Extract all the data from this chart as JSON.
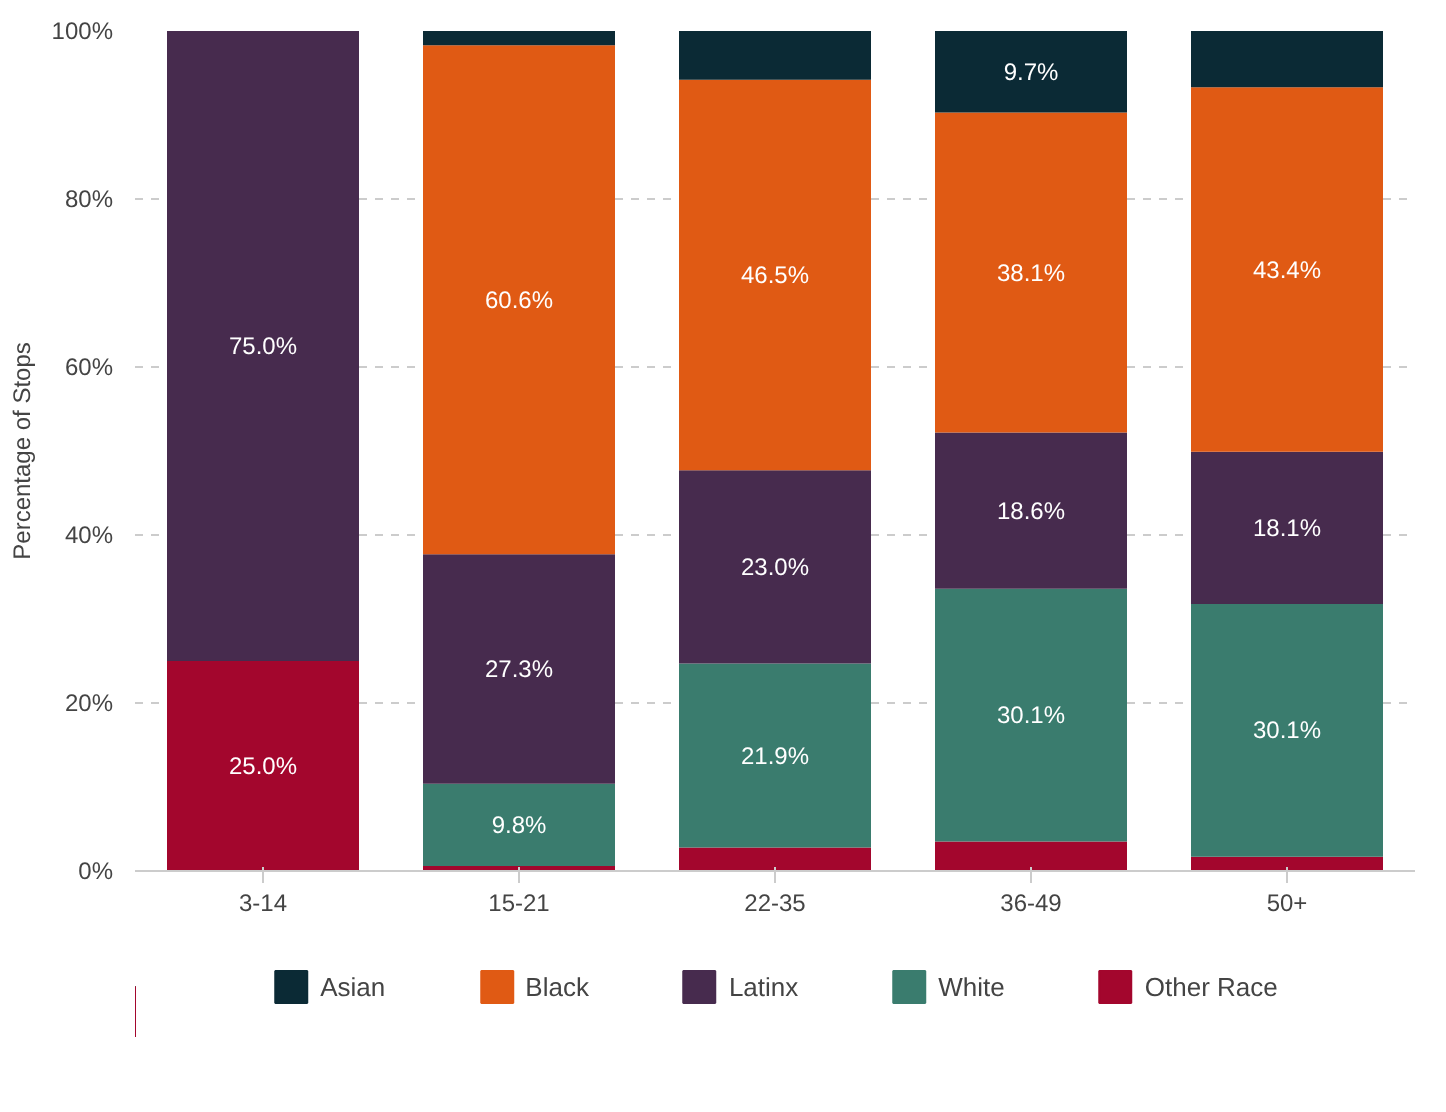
{
  "chart_data": {
    "type": "bar",
    "stacked": true,
    "ylabel": "Percentage of Stops",
    "categories": [
      "3-14",
      "15-21",
      "22-35",
      "36-49",
      "50+"
    ],
    "ylim": [
      0,
      100
    ],
    "yticks": [
      {
        "value": 0,
        "label": "0%"
      },
      {
        "value": 20,
        "label": "20%"
      },
      {
        "value": 40,
        "label": "40%"
      },
      {
        "value": 60,
        "label": "60%"
      },
      {
        "value": 80,
        "label": "80%"
      },
      {
        "value": 100,
        "label": "100%"
      }
    ],
    "grid": "y",
    "legend": "bottom",
    "series": [
      {
        "name": "Other Race",
        "color": "#a3062d",
        "values": [
          25.0,
          0.6,
          2.8,
          3.5,
          1.7
        ],
        "value_labels": [
          "25.0%",
          null,
          null,
          null,
          null
        ]
      },
      {
        "name": "White",
        "color": "#3a7c6e",
        "values": [
          0,
          9.8,
          21.9,
          30.1,
          30.1
        ],
        "value_labels": [
          null,
          "9.8%",
          "21.9%",
          "30.1%",
          "30.1%"
        ]
      },
      {
        "name": "Latinx",
        "color": "#472b4e",
        "values": [
          75.0,
          27.3,
          23.0,
          18.6,
          18.1
        ],
        "value_labels": [
          "75.0%",
          "27.3%",
          "23.0%",
          "18.6%",
          "18.1%"
        ]
      },
      {
        "name": "Black",
        "color": "#e05a14",
        "values": [
          0,
          60.6,
          46.5,
          38.1,
          43.4
        ],
        "value_labels": [
          null,
          "60.6%",
          "46.5%",
          "38.1%",
          "43.4%"
        ]
      },
      {
        "name": "Asian",
        "color": "#0b2a35",
        "values": [
          0,
          1.7,
          5.8,
          9.7,
          6.7
        ],
        "value_labels": [
          null,
          null,
          null,
          "9.7%",
          null
        ]
      }
    ]
  }
}
